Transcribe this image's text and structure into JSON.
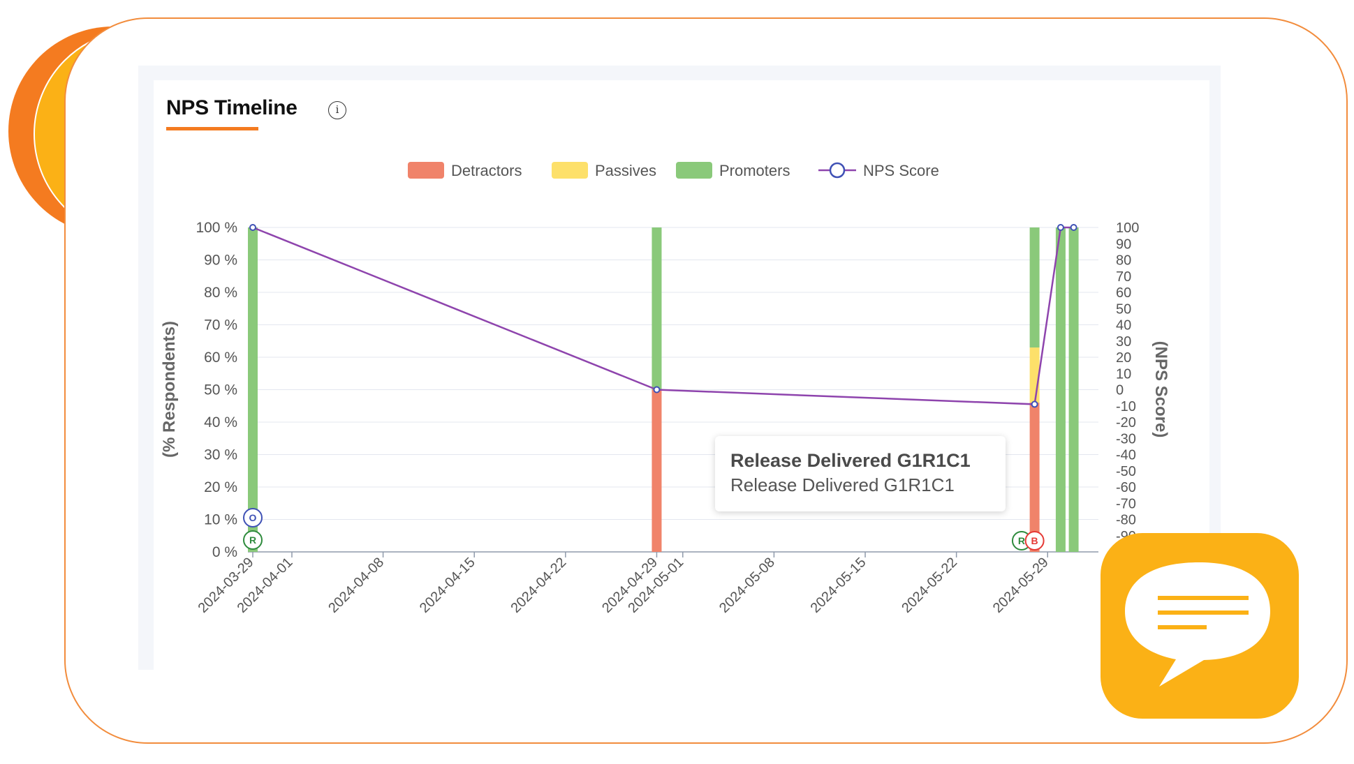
{
  "card": {
    "title": "NPS Timeline",
    "info_icon": "i"
  },
  "colors": {
    "accent": "#f47b20",
    "detractors": "#f0836a",
    "passives": "#fde06a",
    "promoters": "#8ac97a",
    "nps_line": "#8e44ad",
    "nps_marker": "#3f51b5"
  },
  "tooltip": {
    "title": "Release Delivered G1R1C1",
    "body": "Release Delivered G1R1C1"
  },
  "chart_data": {
    "type": "bar",
    "legend": [
      "Detractors",
      "Passives",
      "Promoters",
      "NPS Score"
    ],
    "legend_position": "top-center",
    "grid": true,
    "ylabel": "(% Respondents)",
    "y2label": "(NPS Score)",
    "ylim": [
      0,
      100
    ],
    "y2lim": [
      -100,
      100
    ],
    "yticks": [
      "0 %",
      "10 %",
      "20 %",
      "30 %",
      "40 %",
      "50 %",
      "60 %",
      "70 %",
      "80 %",
      "90 %",
      "100 %"
    ],
    "y2ticks": [
      "100",
      "90",
      "80",
      "70",
      "60",
      "50",
      "40",
      "30",
      "20",
      "10",
      "0",
      "-10",
      "-20",
      "-30",
      "-40",
      "-50",
      "-60",
      "-70",
      "-80",
      "-90"
    ],
    "xticks": [
      "2024-03-29",
      "2024-04-01",
      "2024-04-08",
      "2024-04-15",
      "2024-04-22",
      "2024-04-29",
      "2024-05-01",
      "2024-05-08",
      "2024-05-15",
      "2024-05-22",
      "2024-05-29"
    ],
    "x": [
      "2024-03-29",
      "2024-04-29",
      "2024-05-28",
      "2024-05-30",
      "2024-05-31"
    ],
    "series": [
      {
        "name": "Detractors",
        "values": [
          0,
          50,
          46,
          0,
          0
        ]
      },
      {
        "name": "Passives",
        "values": [
          0,
          0,
          17,
          0,
          0
        ]
      },
      {
        "name": "Promoters",
        "values": [
          100,
          50,
          37,
          100,
          100
        ]
      },
      {
        "name": "NPS Score",
        "values": [
          100,
          0,
          -9,
          100,
          100
        ]
      }
    ],
    "markers": [
      {
        "label": "O",
        "date": "2024-03-29",
        "color": "#3f51b5"
      },
      {
        "label": "R",
        "date": "2024-03-29",
        "color": "#2e8b3d"
      },
      {
        "label": "R",
        "date": "2024-05-27",
        "color": "#2e8b3d"
      },
      {
        "label": "B",
        "date": "2024-05-28",
        "color": "#e53935"
      }
    ]
  }
}
